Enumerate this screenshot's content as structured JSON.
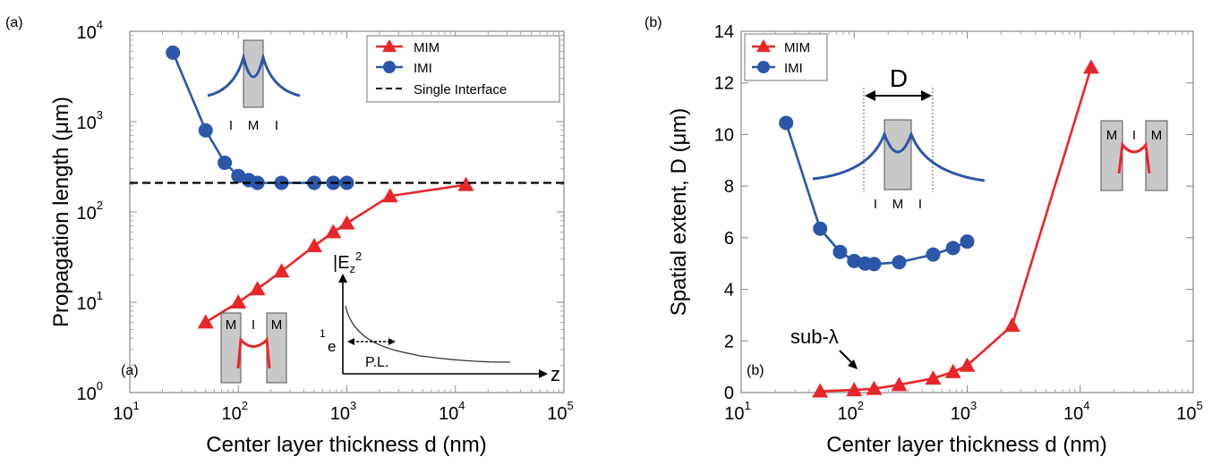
{
  "panel_labels": [
    "(a)",
    "(b)"
  ],
  "colors": {
    "mim": "#e8262a",
    "imi": "#2a57a8",
    "single": "#000000",
    "inset_gray": "#c8c8c8"
  },
  "chart_data": [
    {
      "type": "line",
      "panel": "(a)",
      "inner_label": "(a)",
      "title": "",
      "xlabel": "Center layer thickness d (nm)",
      "ylabel": "Propagation length (μm)",
      "xscale": "log",
      "yscale": "log",
      "xlim": [
        10,
        100000
      ],
      "ylim": [
        1,
        10000
      ],
      "x_ticks": [
        {
          "value": 10,
          "base": "10",
          "exp": "1"
        },
        {
          "value": 100,
          "base": "10",
          "exp": "2"
        },
        {
          "value": 1000,
          "base": "10",
          "exp": "3"
        },
        {
          "value": 10000,
          "base": "10",
          "exp": "4"
        },
        {
          "value": 100000,
          "base": "10",
          "exp": "5"
        }
      ],
      "y_ticks": [
        {
          "value": 1,
          "base": "10",
          "exp": "0"
        },
        {
          "value": 10,
          "base": "10",
          "exp": "1"
        },
        {
          "value": 100,
          "base": "10",
          "exp": "2"
        },
        {
          "value": 1000,
          "base": "10",
          "exp": "3"
        },
        {
          "value": 10000,
          "base": "10",
          "exp": "4"
        }
      ],
      "legend_position": "top-right",
      "series": [
        {
          "name": "MIM",
          "marker": "triangle",
          "x": [
            50,
            100,
            150,
            250,
            500,
            750,
            1000,
            2500,
            12500
          ],
          "y": [
            6,
            10,
            14,
            22,
            42,
            60,
            75,
            150,
            200
          ]
        },
        {
          "name": "IMI",
          "marker": "circle",
          "x": [
            25,
            50,
            75,
            100,
            125,
            150,
            250,
            500,
            750,
            1000
          ],
          "y": [
            5800,
            800,
            350,
            250,
            225,
            210,
            210,
            210,
            210,
            210
          ]
        },
        {
          "name": "Single Interface",
          "marker": "none",
          "style": "dashed",
          "x": [
            10,
            100000
          ],
          "y": [
            210,
            210
          ]
        }
      ],
      "insets": {
        "imi_letters": [
          "I",
          "M",
          "I"
        ],
        "mim_letters": [
          "M",
          "I",
          "M"
        ],
        "decay_ylabel": "|E",
        "decay_ylabel_sub": "z",
        "decay_ylabel_sup": "2",
        "decay_xlabel": "z",
        "decay_one": "1",
        "decay_e": "e",
        "decay_pl": "P.L."
      }
    },
    {
      "type": "line",
      "panel": "(b)",
      "inner_label": "(b)",
      "title": "",
      "xlabel": "Center layer thickness d (nm)",
      "ylabel": "Spatial extent, D (μm)",
      "xscale": "log",
      "yscale": "linear",
      "xlim": [
        10,
        100000
      ],
      "ylim": [
        0,
        14
      ],
      "x_ticks": [
        {
          "value": 10,
          "base": "10",
          "exp": "1"
        },
        {
          "value": 100,
          "base": "10",
          "exp": "2"
        },
        {
          "value": 1000,
          "base": "10",
          "exp": "3"
        },
        {
          "value": 10000,
          "base": "10",
          "exp": "4"
        },
        {
          "value": 100000,
          "base": "10",
          "exp": "5"
        }
      ],
      "y_ticks": [
        0,
        2,
        4,
        6,
        8,
        10,
        12,
        14
      ],
      "legend_position": "top-left",
      "series": [
        {
          "name": "MIM",
          "marker": "triangle",
          "x": [
            50,
            100,
            150,
            250,
            500,
            750,
            1000,
            2500,
            12500
          ],
          "y": [
            0.05,
            0.1,
            0.15,
            0.3,
            0.55,
            0.8,
            1.05,
            2.6,
            12.6
          ]
        },
        {
          "name": "IMI",
          "marker": "circle",
          "x": [
            25,
            50,
            75,
            100,
            125,
            150,
            250,
            500,
            750,
            1000
          ],
          "y": [
            10.45,
            6.35,
            5.45,
            5.1,
            5.0,
            4.98,
            5.05,
            5.35,
            5.6,
            5.85
          ]
        }
      ],
      "annotations": {
        "sub_lambda": "sub-λ",
        "D_label": "D",
        "imi_letters": [
          "I",
          "M",
          "I"
        ],
        "mim_letters": [
          "M",
          "I",
          "M"
        ]
      }
    }
  ]
}
